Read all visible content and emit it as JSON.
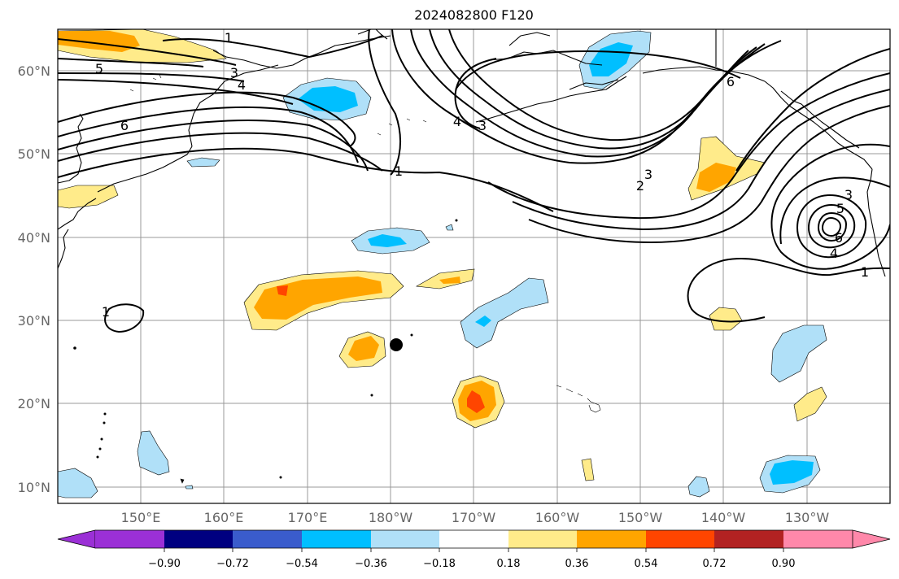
{
  "title": "2024082800 F120",
  "map": {
    "lat_labels": [
      "60°N",
      "50°N",
      "40°N",
      "30°N",
      "20°N",
      "10°N"
    ],
    "lon_labels": [
      "150°E",
      "160°E",
      "170°E",
      "180°W",
      "170°W",
      "160°W",
      "150°W",
      "140°W",
      "130°W"
    ],
    "contour_labels": [
      "1",
      "5",
      "3",
      "4",
      "6",
      "1",
      "4",
      "3",
      "3",
      "2",
      "6",
      "3",
      "5",
      "6",
      "4",
      "1",
      "1"
    ],
    "marker": "black-dot",
    "colors": {
      "background": "#ffffff",
      "grid": "#999999",
      "coastline": "#000000",
      "contour": "#000000"
    }
  },
  "colorbar": {
    "tick_labels": [
      "−0.90",
      "−0.72",
      "−0.54",
      "−0.36",
      "−0.18",
      "0.18",
      "0.36",
      "0.54",
      "0.72",
      "0.90"
    ],
    "colors": [
      "#9b30d6",
      "#000080",
      "#3a5ccc",
      "#00bfff",
      "#b0e0f8",
      "#ffffff",
      "#ffeb8a",
      "#ffa500",
      "#ff4500",
      "#b22222",
      "#ff88aa"
    ]
  }
}
